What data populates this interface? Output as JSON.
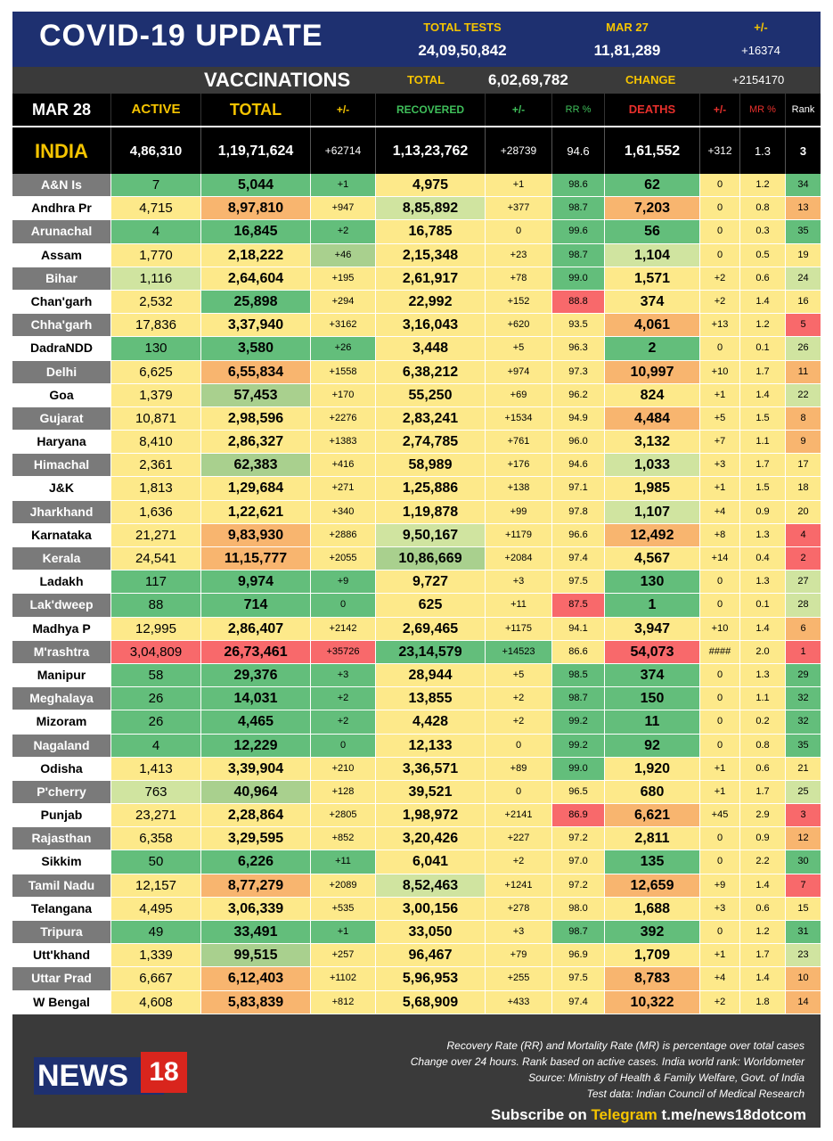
{
  "header": {
    "title": "COVID-19 UPDATE",
    "total_tests_label": "TOTAL TESTS",
    "total_tests_value": "24,09,50,842",
    "date_label": "MAR 27",
    "date_value": "11,81,289",
    "change_label": "+/-",
    "change_value": "+16374",
    "vaccinations_label": "VACCINATIONS",
    "vacc_total_label": "TOTAL",
    "vacc_total_value": "6,02,69,782",
    "vacc_change_label": "CHANGE",
    "vacc_change_value": "+2154170"
  },
  "columns": {
    "date": "MAR 28",
    "active": "ACTIVE",
    "total": "TOTAL",
    "pm1": "+/-",
    "recovered": "RECOVERED",
    "pm2": "+/-",
    "rr": "RR %",
    "deaths": "DEATHS",
    "pm3": "+/-",
    "mr": "MR %",
    "rank": "Rank"
  },
  "india": {
    "name": "INDIA",
    "active": "4,86,310",
    "total": "1,19,71,624",
    "total_change": "+62714",
    "recovered": "1,13,23,762",
    "recovered_change": "+28739",
    "rr": "94.6",
    "deaths": "1,61,552",
    "deaths_change": "+312",
    "mr": "1.3",
    "rank": "3"
  },
  "colors": {
    "dark_green": "#63be7b",
    "mid_green": "#a9d08e",
    "light_green": "#d0e4a0",
    "yellow": "#fde98a",
    "light_orange": "#fcd07f",
    "orange": "#f8b56f",
    "red": "#f8696b",
    "header_blue": "#1e3070",
    "accent_yellow": "#f5c400"
  },
  "states": [
    {
      "name": "A&N Is",
      "active": "7",
      "total": "5,044",
      "total_change": "+1",
      "recovered": "4,975",
      "recovered_change": "+1",
      "rr": "98.6",
      "deaths": "62",
      "deaths_change": "0",
      "mr": "1.2",
      "rank": "34",
      "c": [
        "g",
        "g",
        "g",
        "y",
        "y",
        "g",
        "g",
        "y",
        "y",
        "g"
      ]
    },
    {
      "name": "Andhra Pr",
      "active": "4,715",
      "total": "8,97,810",
      "total_change": "+947",
      "recovered": "8,85,892",
      "recovered_change": "+377",
      "rr": "98.7",
      "deaths": "7,203",
      "deaths_change": "0",
      "mr": "0.8",
      "rank": "13",
      "c": [
        "y",
        "o",
        "y",
        "l",
        "y",
        "g",
        "o",
        "y",
        "y",
        "o"
      ]
    },
    {
      "name": "Arunachal",
      "active": "4",
      "total": "16,845",
      "total_change": "+2",
      "recovered": "16,785",
      "recovered_change": "0",
      "rr": "99.6",
      "deaths": "56",
      "deaths_change": "0",
      "mr": "0.3",
      "rank": "35",
      "c": [
        "g",
        "g",
        "g",
        "y",
        "y",
        "g",
        "g",
        "y",
        "y",
        "g"
      ]
    },
    {
      "name": "Assam",
      "active": "1,770",
      "total": "2,18,222",
      "total_change": "+46",
      "recovered": "2,15,348",
      "recovered_change": "+23",
      "rr": "98.7",
      "deaths": "1,104",
      "deaths_change": "0",
      "mr": "0.5",
      "rank": "19",
      "c": [
        "y",
        "y",
        "m",
        "y",
        "y",
        "g",
        "l",
        "y",
        "y",
        "y"
      ]
    },
    {
      "name": "Bihar",
      "active": "1,116",
      "total": "2,64,604",
      "total_change": "+195",
      "recovered": "2,61,917",
      "recovered_change": "+78",
      "rr": "99.0",
      "deaths": "1,571",
      "deaths_change": "+2",
      "mr": "0.6",
      "rank": "24",
      "c": [
        "l",
        "y",
        "y",
        "y",
        "y",
        "g",
        "y",
        "y",
        "y",
        "l"
      ]
    },
    {
      "name": "Chan'garh",
      "active": "2,532",
      "total": "25,898",
      "total_change": "+294",
      "recovered": "22,992",
      "recovered_change": "+152",
      "rr": "88.8",
      "deaths": "374",
      "deaths_change": "+2",
      "mr": "1.4",
      "rank": "16",
      "c": [
        "y",
        "g",
        "y",
        "y",
        "y",
        "r",
        "y",
        "y",
        "y",
        "y"
      ]
    },
    {
      "name": "Chha'garh",
      "active": "17,836",
      "total": "3,37,940",
      "total_change": "+3162",
      "recovered": "3,16,043",
      "recovered_change": "+620",
      "rr": "93.5",
      "deaths": "4,061",
      "deaths_change": "+13",
      "mr": "1.2",
      "rank": "5",
      "c": [
        "y",
        "y",
        "y",
        "y",
        "y",
        "y",
        "o",
        "y",
        "y",
        "r"
      ]
    },
    {
      "name": "DadraNDD",
      "active": "130",
      "total": "3,580",
      "total_change": "+26",
      "recovered": "3,448",
      "recovered_change": "+5",
      "rr": "96.3",
      "deaths": "2",
      "deaths_change": "0",
      "mr": "0.1",
      "rank": "26",
      "c": [
        "g",
        "g",
        "g",
        "y",
        "y",
        "y",
        "g",
        "y",
        "y",
        "l"
      ]
    },
    {
      "name": "Delhi",
      "active": "6,625",
      "total": "6,55,834",
      "total_change": "+1558",
      "recovered": "6,38,212",
      "recovered_change": "+974",
      "rr": "97.3",
      "deaths": "10,997",
      "deaths_change": "+10",
      "mr": "1.7",
      "rank": "11",
      "c": [
        "y",
        "o",
        "y",
        "y",
        "y",
        "y",
        "o",
        "y",
        "y",
        "o"
      ]
    },
    {
      "name": "Goa",
      "active": "1,379",
      "total": "57,453",
      "total_change": "+170",
      "recovered": "55,250",
      "recovered_change": "+69",
      "rr": "96.2",
      "deaths": "824",
      "deaths_change": "+1",
      "mr": "1.4",
      "rank": "22",
      "c": [
        "y",
        "m",
        "y",
        "y",
        "y",
        "y",
        "y",
        "y",
        "y",
        "l"
      ]
    },
    {
      "name": "Gujarat",
      "active": "10,871",
      "total": "2,98,596",
      "total_change": "+2276",
      "recovered": "2,83,241",
      "recovered_change": "+1534",
      "rr": "94.9",
      "deaths": "4,484",
      "deaths_change": "+5",
      "mr": "1.5",
      "rank": "8",
      "c": [
        "y",
        "y",
        "y",
        "y",
        "y",
        "y",
        "o",
        "y",
        "y",
        "o"
      ]
    },
    {
      "name": "Haryana",
      "active": "8,410",
      "total": "2,86,327",
      "total_change": "+1383",
      "recovered": "2,74,785",
      "recovered_change": "+761",
      "rr": "96.0",
      "deaths": "3,132",
      "deaths_change": "+7",
      "mr": "1.1",
      "rank": "9",
      "c": [
        "y",
        "y",
        "y",
        "y",
        "y",
        "y",
        "y",
        "y",
        "y",
        "o"
      ]
    },
    {
      "name": "Himachal",
      "active": "2,361",
      "total": "62,383",
      "total_change": "+416",
      "recovered": "58,989",
      "recovered_change": "+176",
      "rr": "94.6",
      "deaths": "1,033",
      "deaths_change": "+3",
      "mr": "1.7",
      "rank": "17",
      "c": [
        "y",
        "m",
        "y",
        "y",
        "y",
        "y",
        "l",
        "y",
        "y",
        "y"
      ]
    },
    {
      "name": "J&K",
      "active": "1,813",
      "total": "1,29,684",
      "total_change": "+271",
      "recovered": "1,25,886",
      "recovered_change": "+138",
      "rr": "97.1",
      "deaths": "1,985",
      "deaths_change": "+1",
      "mr": "1.5",
      "rank": "18",
      "c": [
        "y",
        "y",
        "y",
        "y",
        "y",
        "y",
        "y",
        "y",
        "y",
        "y"
      ]
    },
    {
      "name": "Jharkhand",
      "active": "1,636",
      "total": "1,22,621",
      "total_change": "+340",
      "recovered": "1,19,878",
      "recovered_change": "+99",
      "rr": "97.8",
      "deaths": "1,107",
      "deaths_change": "+4",
      "mr": "0.9",
      "rank": "20",
      "c": [
        "y",
        "y",
        "y",
        "y",
        "y",
        "y",
        "l",
        "y",
        "y",
        "y"
      ]
    },
    {
      "name": "Karnataka",
      "active": "21,271",
      "total": "9,83,930",
      "total_change": "+2886",
      "recovered": "9,50,167",
      "recovered_change": "+1179",
      "rr": "96.6",
      "deaths": "12,492",
      "deaths_change": "+8",
      "mr": "1.3",
      "rank": "4",
      "c": [
        "y",
        "o",
        "y",
        "l",
        "y",
        "y",
        "o",
        "y",
        "y",
        "r"
      ]
    },
    {
      "name": "Kerala",
      "active": "24,541",
      "total": "11,15,777",
      "total_change": "+2055",
      "recovered": "10,86,669",
      "recovered_change": "+2084",
      "rr": "97.4",
      "deaths": "4,567",
      "deaths_change": "+14",
      "mr": "0.4",
      "rank": "2",
      "c": [
        "y",
        "o",
        "y",
        "m",
        "y",
        "y",
        "y",
        "y",
        "y",
        "r"
      ]
    },
    {
      "name": "Ladakh",
      "active": "117",
      "total": "9,974",
      "total_change": "+9",
      "recovered": "9,727",
      "recovered_change": "+3",
      "rr": "97.5",
      "deaths": "130",
      "deaths_change": "0",
      "mr": "1.3",
      "rank": "27",
      "c": [
        "g",
        "g",
        "g",
        "y",
        "y",
        "y",
        "g",
        "y",
        "y",
        "l"
      ]
    },
    {
      "name": "Lak'dweep",
      "active": "88",
      "total": "714",
      "total_change": "0",
      "recovered": "625",
      "recovered_change": "+11",
      "rr": "87.5",
      "deaths": "1",
      "deaths_change": "0",
      "mr": "0.1",
      "rank": "28",
      "c": [
        "g",
        "g",
        "g",
        "y",
        "y",
        "r",
        "g",
        "y",
        "y",
        "l"
      ]
    },
    {
      "name": "Madhya P",
      "active": "12,995",
      "total": "2,86,407",
      "total_change": "+2142",
      "recovered": "2,69,465",
      "recovered_change": "+1175",
      "rr": "94.1",
      "deaths": "3,947",
      "deaths_change": "+10",
      "mr": "1.4",
      "rank": "6",
      "c": [
        "y",
        "y",
        "y",
        "y",
        "y",
        "y",
        "y",
        "y",
        "y",
        "o"
      ]
    },
    {
      "name": "M'rashtra",
      "active": "3,04,809",
      "total": "26,73,461",
      "total_change": "+35726",
      "recovered": "23,14,579",
      "recovered_change": "+14523",
      "rr": "86.6",
      "deaths": "54,073",
      "deaths_change": "####",
      "mr": "2.0",
      "rank": "1",
      "c": [
        "r",
        "r",
        "r",
        "g",
        "g",
        "y",
        "r",
        "y",
        "y",
        "r"
      ]
    },
    {
      "name": "Manipur",
      "active": "58",
      "total": "29,376",
      "total_change": "+3",
      "recovered": "28,944",
      "recovered_change": "+5",
      "rr": "98.5",
      "deaths": "374",
      "deaths_change": "0",
      "mr": "1.3",
      "rank": "29",
      "c": [
        "g",
        "g",
        "g",
        "y",
        "y",
        "g",
        "g",
        "y",
        "y",
        "g"
      ]
    },
    {
      "name": "Meghalaya",
      "active": "26",
      "total": "14,031",
      "total_change": "+2",
      "recovered": "13,855",
      "recovered_change": "+2",
      "rr": "98.7",
      "deaths": "150",
      "deaths_change": "0",
      "mr": "1.1",
      "rank": "32",
      "c": [
        "g",
        "g",
        "g",
        "y",
        "y",
        "g",
        "g",
        "y",
        "y",
        "g"
      ]
    },
    {
      "name": "Mizoram",
      "active": "26",
      "total": "4,465",
      "total_change": "+2",
      "recovered": "4,428",
      "recovered_change": "+2",
      "rr": "99.2",
      "deaths": "11",
      "deaths_change": "0",
      "mr": "0.2",
      "rank": "32",
      "c": [
        "g",
        "g",
        "g",
        "y",
        "y",
        "g",
        "g",
        "y",
        "y",
        "g"
      ]
    },
    {
      "name": "Nagaland",
      "active": "4",
      "total": "12,229",
      "total_change": "0",
      "recovered": "12,133",
      "recovered_change": "0",
      "rr": "99.2",
      "deaths": "92",
      "deaths_change": "0",
      "mr": "0.8",
      "rank": "35",
      "c": [
        "g",
        "g",
        "g",
        "y",
        "y",
        "g",
        "g",
        "y",
        "y",
        "g"
      ]
    },
    {
      "name": "Odisha",
      "active": "1,413",
      "total": "3,39,904",
      "total_change": "+210",
      "recovered": "3,36,571",
      "recovered_change": "+89",
      "rr": "99.0",
      "deaths": "1,920",
      "deaths_change": "+1",
      "mr": "0.6",
      "rank": "21",
      "c": [
        "y",
        "y",
        "y",
        "y",
        "y",
        "g",
        "y",
        "y",
        "y",
        "y"
      ]
    },
    {
      "name": "P'cherry",
      "active": "763",
      "total": "40,964",
      "total_change": "+128",
      "recovered": "39,521",
      "recovered_change": "0",
      "rr": "96.5",
      "deaths": "680",
      "deaths_change": "+1",
      "mr": "1.7",
      "rank": "25",
      "c": [
        "l",
        "m",
        "y",
        "y",
        "y",
        "y",
        "y",
        "y",
        "y",
        "l"
      ]
    },
    {
      "name": "Punjab",
      "active": "23,271",
      "total": "2,28,864",
      "total_change": "+2805",
      "recovered": "1,98,972",
      "recovered_change": "+2141",
      "rr": "86.9",
      "deaths": "6,621",
      "deaths_change": "+45",
      "mr": "2.9",
      "rank": "3",
      "c": [
        "y",
        "y",
        "y",
        "y",
        "y",
        "r",
        "o",
        "y",
        "y",
        "r"
      ]
    },
    {
      "name": "Rajasthan",
      "active": "6,358",
      "total": "3,29,595",
      "total_change": "+852",
      "recovered": "3,20,426",
      "recovered_change": "+227",
      "rr": "97.2",
      "deaths": "2,811",
      "deaths_change": "0",
      "mr": "0.9",
      "rank": "12",
      "c": [
        "y",
        "y",
        "y",
        "y",
        "y",
        "y",
        "y",
        "y",
        "y",
        "o"
      ]
    },
    {
      "name": "Sikkim",
      "active": "50",
      "total": "6,226",
      "total_change": "+11",
      "recovered": "6,041",
      "recovered_change": "+2",
      "rr": "97.0",
      "deaths": "135",
      "deaths_change": "0",
      "mr": "2.2",
      "rank": "30",
      "c": [
        "g",
        "g",
        "g",
        "y",
        "y",
        "y",
        "g",
        "y",
        "y",
        "g"
      ]
    },
    {
      "name": "Tamil Nadu",
      "active": "12,157",
      "total": "8,77,279",
      "total_change": "+2089",
      "recovered": "8,52,463",
      "recovered_change": "+1241",
      "rr": "97.2",
      "deaths": "12,659",
      "deaths_change": "+9",
      "mr": "1.4",
      "rank": "7",
      "c": [
        "y",
        "o",
        "y",
        "l",
        "y",
        "y",
        "o",
        "y",
        "y",
        "r"
      ]
    },
    {
      "name": "Telangana",
      "active": "4,495",
      "total": "3,06,339",
      "total_change": "+535",
      "recovered": "3,00,156",
      "recovered_change": "+278",
      "rr": "98.0",
      "deaths": "1,688",
      "deaths_change": "+3",
      "mr": "0.6",
      "rank": "15",
      "c": [
        "y",
        "y",
        "y",
        "y",
        "y",
        "y",
        "y",
        "y",
        "y",
        "y"
      ]
    },
    {
      "name": "Tripura",
      "active": "49",
      "total": "33,491",
      "total_change": "+1",
      "recovered": "33,050",
      "recovered_change": "+3",
      "rr": "98.7",
      "deaths": "392",
      "deaths_change": "0",
      "mr": "1.2",
      "rank": "31",
      "c": [
        "g",
        "g",
        "g",
        "y",
        "y",
        "g",
        "g",
        "y",
        "y",
        "g"
      ]
    },
    {
      "name": "Utt'khand",
      "active": "1,339",
      "total": "99,515",
      "total_change": "+257",
      "recovered": "96,467",
      "recovered_change": "+79",
      "rr": "96.9",
      "deaths": "1,709",
      "deaths_change": "+1",
      "mr": "1.7",
      "rank": "23",
      "c": [
        "y",
        "m",
        "y",
        "y",
        "y",
        "y",
        "y",
        "y",
        "y",
        "l"
      ]
    },
    {
      "name": "Uttar Prad",
      "active": "6,667",
      "total": "6,12,403",
      "total_change": "+1102",
      "recovered": "5,96,953",
      "recovered_change": "+255",
      "rr": "97.5",
      "deaths": "8,783",
      "deaths_change": "+4",
      "mr": "1.4",
      "rank": "10",
      "c": [
        "y",
        "o",
        "y",
        "y",
        "y",
        "y",
        "o",
        "y",
        "y",
        "o"
      ]
    },
    {
      "name": "W Bengal",
      "active": "4,608",
      "total": "5,83,839",
      "total_change": "+812",
      "recovered": "5,68,909",
      "recovered_change": "+433",
      "rr": "97.4",
      "deaths": "10,322",
      "deaths_change": "+2",
      "mr": "1.8",
      "rank": "14",
      "c": [
        "y",
        "o",
        "y",
        "y",
        "y",
        "y",
        "o",
        "y",
        "y",
        "o"
      ]
    }
  ],
  "footer": {
    "logo_text": "NEWS",
    "logo_num": "18",
    "note1": "Recovery Rate (RR) and Mortality Rate (MR) is percentage over total cases",
    "note2": "Change over 24 hours. Rank based on active cases. India world rank: Worldometer",
    "note3": "Source: Ministry of Health & Family Welfare, Govt. of India",
    "note4": "Test data: Indian Council of Medical Research",
    "subscribe": "Subscribe on",
    "telegram": "Telegram",
    "link": "t.me/news18dotcom"
  }
}
